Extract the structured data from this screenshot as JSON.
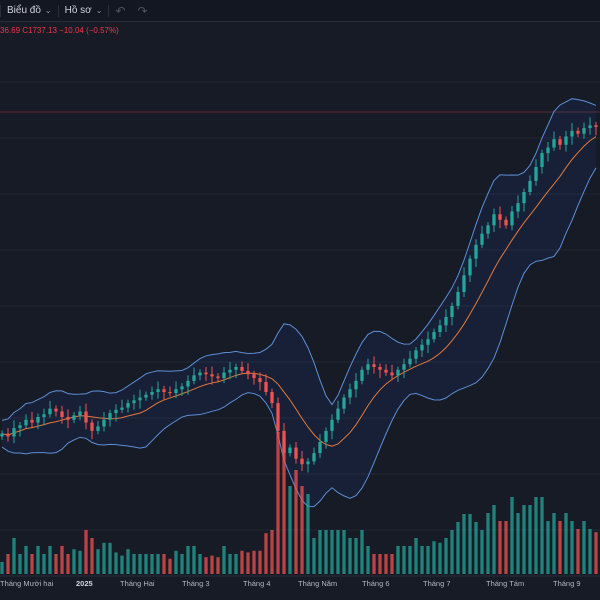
{
  "toolbar": {
    "chart_label": "Biểu đồ",
    "profile_label": "Hồ sơ",
    "undo_icon": "undo-icon",
    "redo_icon": "redo-icon"
  },
  "legend": {
    "text": "36.69  C1737.13  −10.04 (−0.57%)"
  },
  "colors": {
    "up": "#26a69a",
    "down": "#ef5350",
    "band": "#5b8fd6",
    "basis": "#e0783a",
    "background": "#171b26"
  },
  "x_axis": {
    "labels": [
      "Tháng Mười hai",
      "2025",
      "Tháng Hai",
      "Tháng 3",
      "Tháng 4",
      "Tháng Năm",
      "Tháng 6",
      "Tháng 7",
      "Tháng Tám",
      "Tháng 9"
    ],
    "year_label": "2025"
  },
  "chart_data": {
    "type": "candlestick",
    "indicators": [
      "Bollinger Bands",
      "Volume"
    ],
    "close_series": [
      1185,
      1180,
      1195,
      1200,
      1210,
      1205,
      1215,
      1220,
      1230,
      1225,
      1215,
      1210,
      1218,
      1225,
      1205,
      1190,
      1198,
      1210,
      1222,
      1228,
      1232,
      1240,
      1245,
      1250,
      1255,
      1260,
      1265,
      1260,
      1258,
      1265,
      1270,
      1280,
      1290,
      1295,
      1292,
      1288,
      1285,
      1295,
      1300,
      1305,
      1298,
      1292,
      1285,
      1278,
      1260,
      1240,
      1190,
      1150,
      1160,
      1140,
      1130,
      1135,
      1150,
      1170,
      1190,
      1210,
      1230,
      1250,
      1265,
      1280,
      1300,
      1310,
      1305,
      1300,
      1295,
      1290,
      1300,
      1310,
      1320,
      1335,
      1345,
      1355,
      1368,
      1380,
      1395,
      1415,
      1440,
      1470,
      1500,
      1525,
      1545,
      1560,
      1580,
      1570,
      1560,
      1585,
      1600,
      1620,
      1640,
      1665,
      1690,
      1700,
      1715,
      1705,
      1720,
      1730,
      1725,
      1735,
      1740,
      1737
    ],
    "last": {
      "close": 1737.13,
      "change": -10.04,
      "change_pct": -0.57
    }
  }
}
